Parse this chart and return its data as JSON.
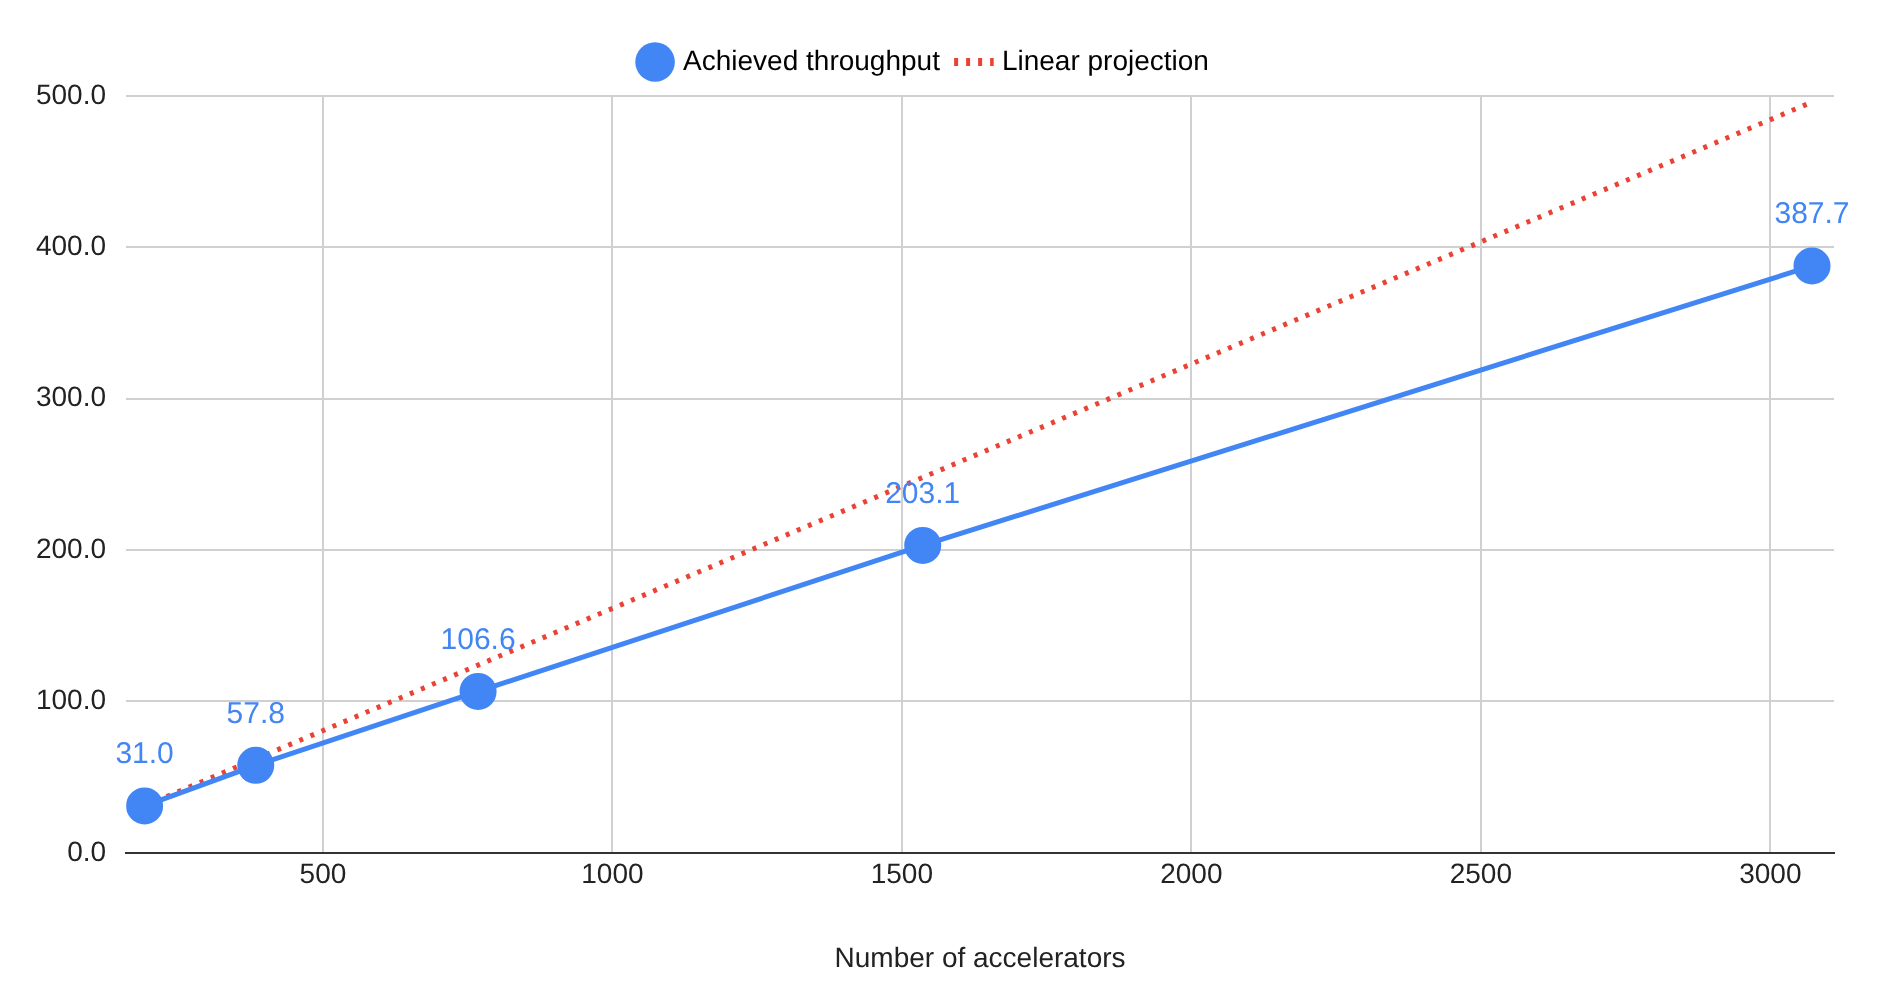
{
  "chart_data": {
    "type": "line",
    "xlabel": "Number of accelerators",
    "x": [
      192,
      384,
      768,
      1536,
      3072
    ],
    "series": [
      {
        "name": "Achieved throughput",
        "color": "#4285f4",
        "marker": "circle",
        "line_style": "solid",
        "values": [
          31.0,
          57.8,
          106.6,
          203.1,
          387.7
        ],
        "value_labels": [
          "31.0",
          "57.8",
          "106.6",
          "203.1",
          "387.7"
        ]
      },
      {
        "name": "Linear projection",
        "color": "#ea4335",
        "marker": "none",
        "line_style": "dotted",
        "values": [
          31,
          62,
          124,
          248,
          496
        ]
      }
    ],
    "xlim": [
      160,
      3110
    ],
    "xticks": [
      500,
      1000,
      1500,
      2000,
      2500,
      3000
    ],
    "ylim": [
      0,
      500
    ],
    "yticks": [
      {
        "value": 0,
        "label": "0.0"
      },
      {
        "value": 100,
        "label": "100.0"
      },
      {
        "value": 200,
        "label": "200.0"
      },
      {
        "value": 300,
        "label": "300.0"
      },
      {
        "value": 400,
        "label": "400.0"
      },
      {
        "value": 500,
        "label": "500.0"
      }
    ],
    "grid": true,
    "legend": "top"
  }
}
